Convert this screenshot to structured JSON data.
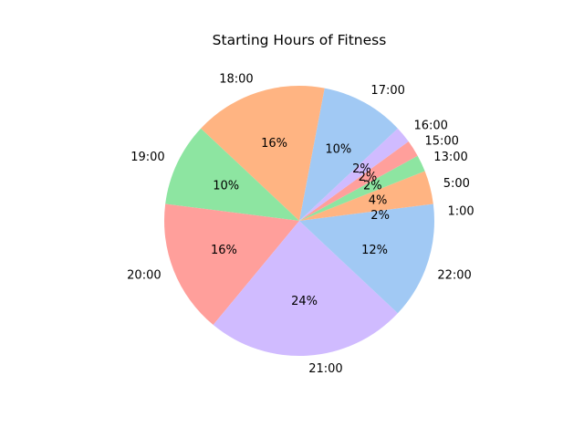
{
  "chart_data": {
    "type": "pie",
    "title": "Starting Hours of Fitness",
    "start_angle_deg": 0,
    "direction": "counterclockwise",
    "slices": [
      {
        "label": "1:00",
        "value": 2,
        "pct_label": "2%",
        "color": "#a1c9f4"
      },
      {
        "label": "5:00",
        "value": 4,
        "pct_label": "4%",
        "color": "#ffb482"
      },
      {
        "label": "13:00",
        "value": 2,
        "pct_label": "2%",
        "color": "#8de5a1"
      },
      {
        "label": "15:00",
        "value": 2,
        "pct_label": "2%",
        "color": "#ff9f9b"
      },
      {
        "label": "16:00",
        "value": 2,
        "pct_label": "2%",
        "color": "#d0bbff"
      },
      {
        "label": "17:00",
        "value": 10,
        "pct_label": "10%",
        "color": "#a1c9f4"
      },
      {
        "label": "18:00",
        "value": 16,
        "pct_label": "16%",
        "color": "#ffb482"
      },
      {
        "label": "19:00",
        "value": 10,
        "pct_label": "10%",
        "color": "#8de5a1"
      },
      {
        "label": "20:00",
        "value": 16,
        "pct_label": "16%",
        "color": "#ff9f9b"
      },
      {
        "label": "21:00",
        "value": 24,
        "pct_label": "24%",
        "color": "#d0bbff"
      },
      {
        "label": "22:00",
        "value": 12,
        "pct_label": "12%",
        "color": "#a1c9f4"
      }
    ]
  }
}
